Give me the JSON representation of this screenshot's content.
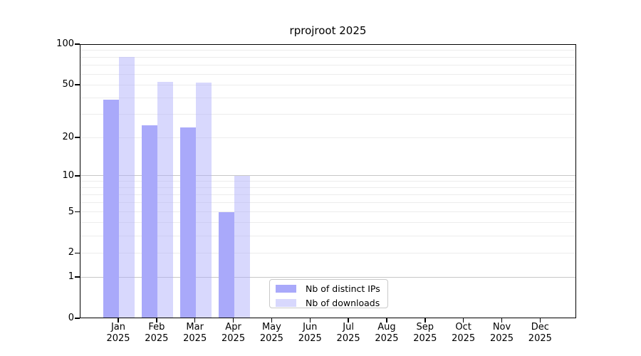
{
  "chart_data": {
    "type": "bar",
    "title": "rprojroot 2025",
    "categories": [
      "Jan",
      "Feb",
      "Mar",
      "Apr",
      "May",
      "Jun",
      "Jul",
      "Aug",
      "Sep",
      "Oct",
      "Nov",
      "Dec"
    ],
    "year_label": "2025",
    "series": [
      {
        "name": "Nb of distinct IPs",
        "color": "#a9a9fa",
        "values": [
          39,
          25,
          24,
          5,
          0,
          0,
          0,
          0,
          0,
          0,
          0,
          0
        ]
      },
      {
        "name": "Nb of downloads",
        "color": "rgba(170,170,250,0.46)",
        "values": [
          81,
          53,
          52,
          10,
          0,
          0,
          0,
          0,
          0,
          0,
          0,
          0
        ]
      }
    ],
    "yticks": [
      0,
      1,
      2,
      5,
      10,
      20,
      50,
      100
    ],
    "major_gridlines": [
      1,
      10
    ],
    "minor_gridlines": [
      2,
      3,
      4,
      5,
      6,
      7,
      8,
      9,
      20,
      30,
      40,
      50,
      60,
      70,
      80,
      90
    ],
    "scale": "log1p",
    "ylim": [
      0,
      100
    ],
    "grid": true,
    "legend_position": "inside-bottom-center",
    "colors": {
      "spine": "#000000",
      "grid_minor": "#ececec",
      "grid_major": "#c7c7c7",
      "legend_border": "#c9c9c9",
      "background": "#ffffff"
    }
  }
}
